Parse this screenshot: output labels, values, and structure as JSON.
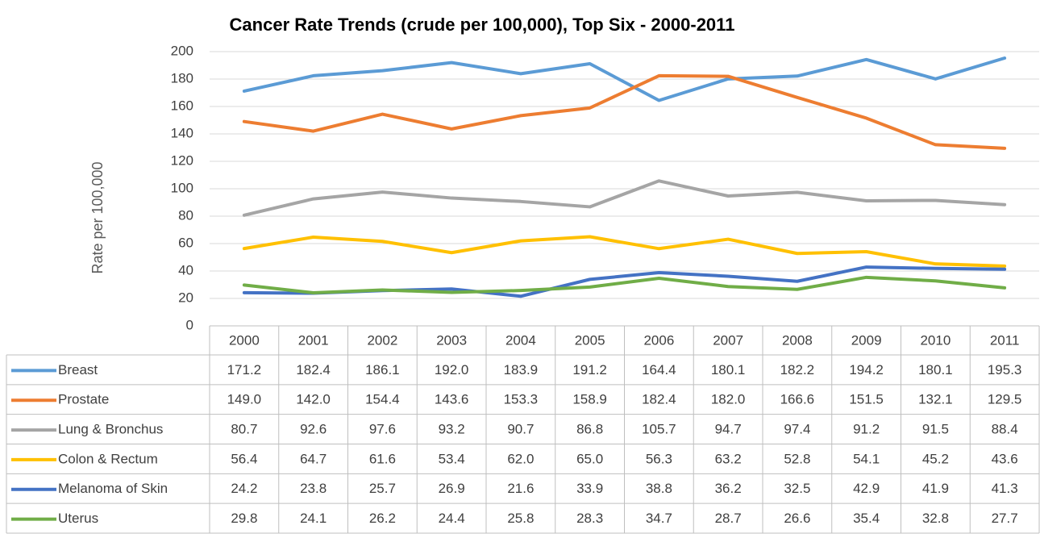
{
  "chart_data": {
    "type": "line",
    "title": "Cancer Rate Trends (crude per 100,000), Top Six  - 2000-2011",
    "y_label": "Rate per 100,000",
    "categories": [
      "2000",
      "2001",
      "2002",
      "2003",
      "2004",
      "2005",
      "2006",
      "2007",
      "2008",
      "2009",
      "2010",
      "2011"
    ],
    "ylim": [
      0,
      200
    ],
    "yticks": [
      0,
      20,
      40,
      60,
      80,
      100,
      120,
      140,
      160,
      180,
      200
    ],
    "grid": true,
    "series": [
      {
        "name": "Breast",
        "color": "#5b9bd5",
        "values": [
          171.2,
          182.4,
          186.1,
          192.0,
          183.9,
          191.2,
          164.4,
          180.1,
          182.2,
          194.2,
          180.1,
          195.3
        ],
        "value_labels": [
          "171.2",
          "182.4",
          "186.1",
          "192.0",
          "183.9",
          "191.2",
          "164.4",
          "180.1",
          "182.2",
          "194.2",
          "180.1",
          "195.3"
        ]
      },
      {
        "name": "Prostate",
        "color": "#ed7d31",
        "values": [
          149.0,
          142.0,
          154.4,
          143.6,
          153.3,
          158.9,
          182.4,
          182.0,
          166.6,
          151.5,
          132.1,
          129.5
        ],
        "value_labels": [
          "149.0",
          "142.0",
          "154.4",
          "143.6",
          "153.3",
          "158.9",
          "182.4",
          "182.0",
          "166.6",
          "151.5",
          "132.1",
          "129.5"
        ]
      },
      {
        "name": "Lung & Bronchus",
        "color": "#a5a5a5",
        "values": [
          80.7,
          92.6,
          97.6,
          93.2,
          90.7,
          86.8,
          105.7,
          94.7,
          97.4,
          91.2,
          91.5,
          88.4
        ],
        "value_labels": [
          "80.7",
          "92.6",
          "97.6",
          "93.2",
          "90.7",
          "86.8",
          "105.7",
          "94.7",
          "97.4",
          "91.2",
          "91.5",
          "88.4"
        ]
      },
      {
        "name": "Colon & Rectum",
        "color": "#ffc000",
        "values": [
          56.4,
          64.7,
          61.6,
          53.4,
          62.0,
          65.0,
          56.3,
          63.2,
          52.8,
          54.1,
          45.2,
          43.6
        ],
        "value_labels": [
          "56.4",
          "64.7",
          "61.6",
          "53.4",
          "62.0",
          "65.0",
          "56.3",
          "63.2",
          "52.8",
          "54.1",
          "45.2",
          "43.6"
        ]
      },
      {
        "name": "Melanoma of Skin",
        "color": "#4472c4",
        "values": [
          24.2,
          23.8,
          25.7,
          26.9,
          21.6,
          33.9,
          38.8,
          36.2,
          32.5,
          42.9,
          41.9,
          41.3
        ],
        "value_labels": [
          "24.2",
          "23.8",
          "25.7",
          "26.9",
          "21.6",
          "33.9",
          "38.8",
          "36.2",
          "32.5",
          "42.9",
          "41.9",
          "41.3"
        ]
      },
      {
        "name": "Uterus",
        "color": "#70ad47",
        "values": [
          29.8,
          24.1,
          26.2,
          24.4,
          25.8,
          28.3,
          34.7,
          28.7,
          26.6,
          35.4,
          32.8,
          27.7
        ],
        "value_labels": [
          "29.8",
          "24.1",
          "26.2",
          "24.4",
          "25.8",
          "28.3",
          "34.7",
          "28.7",
          "26.6",
          "35.4",
          "32.8",
          "27.7"
        ]
      }
    ]
  }
}
